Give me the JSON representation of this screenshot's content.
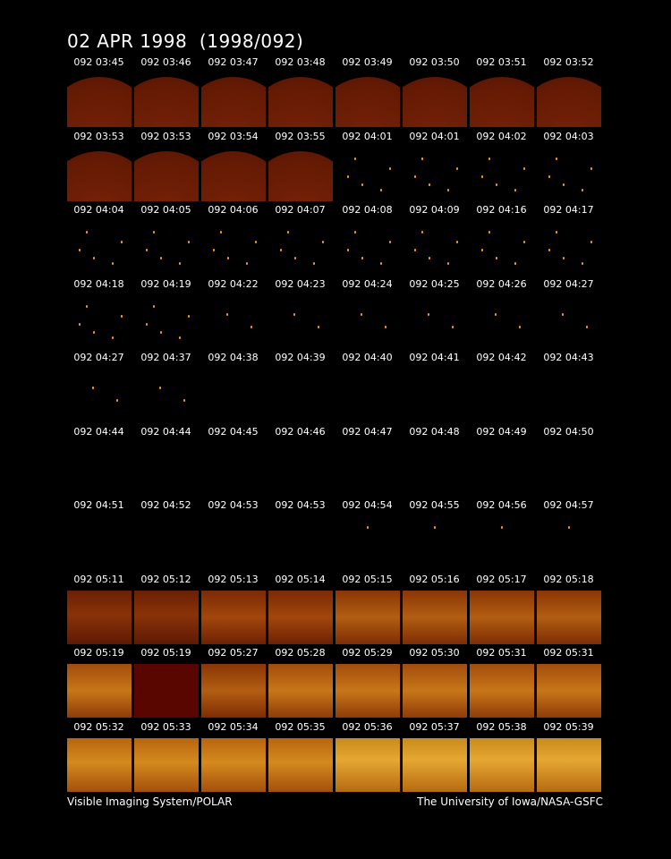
{
  "title": "02 APR 1998  (1998/092)",
  "footer": {
    "left": "Visible Imaging System/POLAR",
    "right": "The University of Iowa/NASA-GSFC"
  },
  "rows": [
    {
      "timestamps": [
        "092 03:45",
        "092 03:46",
        "092 03:47",
        "092 03:48",
        "092 03:49",
        "092 03:50",
        "092 03:51",
        "092 03:52"
      ],
      "frames": [
        "earth-limb",
        "earth-limb",
        "earth-limb",
        "earth-limb",
        "earth-limb",
        "earth-limb",
        "earth-limb",
        "earth-limb"
      ]
    },
    {
      "timestamps": [
        "092 03:53",
        "092 03:53",
        "092 03:54",
        "092 03:55",
        "092 04:01",
        "092 04:01",
        "092 04:02",
        "092 04:03"
      ],
      "frames": [
        "earth-limb",
        "earth-limb",
        "earth-limb",
        "earth-limb",
        "star-field",
        "star-field",
        "star-field",
        "star-field"
      ]
    },
    {
      "timestamps": [
        "092 04:04",
        "092 04:05",
        "092 04:06",
        "092 04:07",
        "092 04:08",
        "092 04:09",
        "092 04:16",
        "092 04:17"
      ],
      "frames": [
        "star-field",
        "star-field",
        "star-field",
        "star-field",
        "star-field",
        "star-field",
        "star-field",
        "star-field"
      ]
    },
    {
      "timestamps": [
        "092 04:18",
        "092 04:19",
        "092 04:22",
        "092 04:23",
        "092 04:24",
        "092 04:25",
        "092 04:26",
        "092 04:27"
      ],
      "frames": [
        "star-field",
        "star-field",
        "sparse",
        "sparse",
        "sparse",
        "sparse",
        "sparse",
        "sparse"
      ]
    },
    {
      "timestamps": [
        "092 04:27",
        "092 04:37",
        "092 04:38",
        "092 04:39",
        "092 04:40",
        "092 04:41",
        "092 04:42",
        "092 04:43"
      ],
      "frames": [
        "sparse",
        "sparse",
        "dark",
        "dark",
        "dark",
        "dark",
        "dark",
        "dark"
      ]
    },
    {
      "timestamps": [
        "092 04:44",
        "092 04:44",
        "092 04:45",
        "092 04:46",
        "092 04:47",
        "092 04:48",
        "092 04:49",
        "092 04:50"
      ],
      "frames": [
        "dark",
        "dark",
        "dark",
        "dark",
        "dark",
        "dark",
        "dark",
        "dark"
      ]
    },
    {
      "timestamps": [
        "092 04:51",
        "092 04:52",
        "092 04:53",
        "092 04:53",
        "092 04:54",
        "092 04:55",
        "092 04:56",
        "092 04:57"
      ],
      "frames": [
        "dark",
        "dark",
        "dark",
        "dark",
        "single-star",
        "single-star",
        "single-star",
        "single-star"
      ]
    },
    {
      "timestamps": [
        "092 05:11",
        "092 05:12",
        "092 05:13",
        "092 05:14",
        "092 05:15",
        "092 05:16",
        "092 05:17",
        "092 05:18"
      ],
      "frames": [
        "aurora-1",
        "aurora-1",
        "aurora-2",
        "aurora-2",
        "aurora-3",
        "aurora-3",
        "aurora-3",
        "aurora-3"
      ]
    },
    {
      "timestamps": [
        "092 05:19",
        "092 05:19",
        "092 05:27",
        "092 05:28",
        "092 05:29",
        "092 05:30",
        "092 05:31",
        "092 05:31"
      ],
      "frames": [
        "aurora-4",
        "flat-red",
        "aurora-3",
        "aurora-4",
        "aurora-4",
        "aurora-4",
        "aurora-4",
        "aurora-4"
      ]
    },
    {
      "timestamps": [
        "092 05:32",
        "092 05:33",
        "092 05:34",
        "092 05:35",
        "092 05:36",
        "092 05:37",
        "092 05:38",
        "092 05:39"
      ],
      "frames": [
        "aurora-5",
        "aurora-5",
        "aurora-5",
        "aurora-5",
        "aurora-6",
        "aurora-6",
        "aurora-6",
        "aurora-6"
      ]
    }
  ]
}
